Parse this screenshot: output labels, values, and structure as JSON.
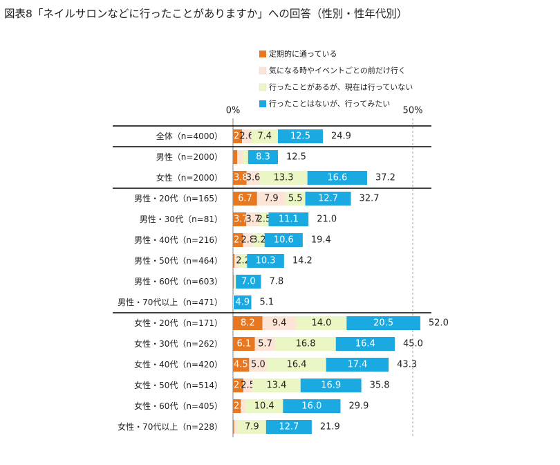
{
  "title": "図表8「ネイルサロンなどに行ったことがありますか」への回答（性別・性年代別）",
  "chart_data": {
    "type": "bar",
    "stacked": true,
    "orientation": "horizontal",
    "xlim": [
      0,
      50
    ],
    "tick_labels": [
      "0%",
      "50%"
    ],
    "legend_position": "top",
    "series": [
      {
        "name": "定期的に通っている",
        "color": "#E87722"
      },
      {
        "name": "気になる時やイベントごとの前だけ行く",
        "color": "#FCE4D6"
      },
      {
        "name": "行ったことがあるが、現在は行っていない",
        "color": "#EAF6C4"
      },
      {
        "name": "行ったことはないが、行ってみたい",
        "color": "#1BA9E1"
      }
    ],
    "rows": [
      {
        "label": "全体（n=4000）",
        "values": [
          2.5,
          2.6,
          7.4,
          12.5
        ],
        "labels": [
          "2.5",
          "2.6",
          "7.4",
          "12.5"
        ],
        "total": "24.9"
      },
      {
        "label": "男性（n=2000）",
        "values": [
          1.2,
          1.5,
          1.5,
          8.3
        ],
        "labels": [
          "",
          "",
          "",
          "8.3"
        ],
        "total": "12.5"
      },
      {
        "label": "女性（n=2000）",
        "values": [
          3.8,
          3.6,
          13.3,
          16.6
        ],
        "labels": [
          "3.8",
          "3.6",
          "13.3",
          "16.6"
        ],
        "total": "37.2"
      },
      {
        "label": "男性・20代（n=165）",
        "values": [
          6.7,
          7.9,
          5.5,
          12.7
        ],
        "labels": [
          "6.7",
          "7.9",
          "5.5",
          "12.7"
        ],
        "total": "32.7"
      },
      {
        "label": "男性・30代（n=81）",
        "values": [
          3.7,
          3.7,
          2.5,
          11.1
        ],
        "labels": [
          "3.7",
          "3.7",
          "2.5",
          "11.1"
        ],
        "total": "21.0"
      },
      {
        "label": "男性・40代（n=216）",
        "values": [
          2.8,
          2.8,
          3.2,
          10.6
        ],
        "labels": [
          "2.8",
          "2.8",
          "3.2",
          "10.6"
        ],
        "total": "19.4"
      },
      {
        "label": "男性・50代（n=464）",
        "values": [
          0.4,
          1.3,
          2.2,
          10.3
        ],
        "labels": [
          "",
          "",
          "2.2",
          "10.3"
        ],
        "total": "14.2"
      },
      {
        "label": "男性・60代（n=603）",
        "values": [
          0.2,
          0.2,
          0.4,
          7.0
        ],
        "labels": [
          "",
          "",
          "",
          "7.0"
        ],
        "total": "7.8"
      },
      {
        "label": "男性・70代以上（n=471）",
        "values": [
          0.0,
          0.0,
          0.2,
          4.9
        ],
        "labels": [
          "",
          "",
          "",
          "4.9"
        ],
        "total": "5.1"
      },
      {
        "label": "女性・20代（n=171）",
        "values": [
          8.2,
          9.4,
          14.0,
          20.5
        ],
        "labels": [
          "8.2",
          "9.4",
          "14.0",
          "20.5"
        ],
        "total": "52.0"
      },
      {
        "label": "女性・30代（n=262）",
        "values": [
          6.1,
          5.7,
          16.8,
          16.4
        ],
        "labels": [
          "6.1",
          "5.7",
          "16.8",
          "16.4"
        ],
        "total": "45.0"
      },
      {
        "label": "女性・40代（n=420）",
        "values": [
          4.5,
          5.0,
          16.4,
          17.4
        ],
        "labels": [
          "4.5",
          "5.0",
          "16.4",
          "17.4"
        ],
        "total": "43.3"
      },
      {
        "label": "女性・50代（n=514）",
        "values": [
          2.9,
          2.5,
          13.4,
          16.9
        ],
        "labels": [
          "2.9",
          "2.5",
          "13.4",
          "16.9"
        ],
        "total": "35.8"
      },
      {
        "label": "女性・60代（n=405）",
        "values": [
          2.2,
          1.3,
          10.4,
          16.0
        ],
        "labels": [
          "2.2",
          "",
          "10.4",
          "16.0"
        ],
        "total": "29.9"
      },
      {
        "label": "女性・70代以上（n=228）",
        "values": [
          0.3,
          1.0,
          7.9,
          12.7
        ],
        "labels": [
          "",
          "",
          "7.9",
          "12.7"
        ],
        "total": "21.9"
      }
    ],
    "group_separators_after": [
      0,
      2,
      8
    ]
  }
}
